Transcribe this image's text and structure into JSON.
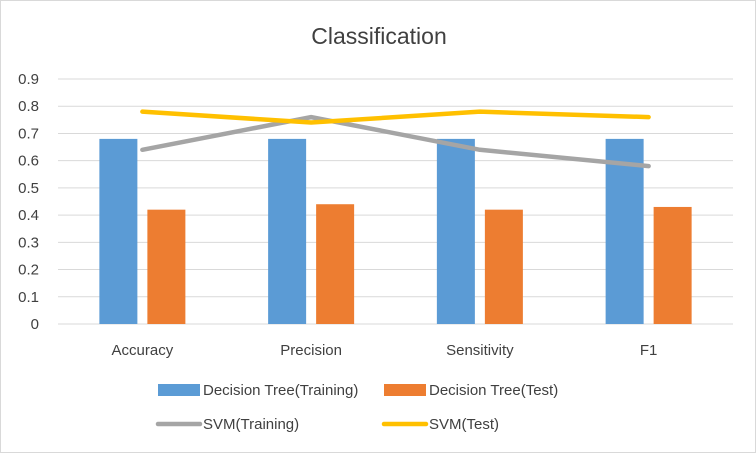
{
  "chart_data": {
    "type": "bar",
    "title": "Classification",
    "categories": [
      "Accuracy",
      "Precision",
      "Sensitivity",
      "F1"
    ],
    "yticks": [
      "0",
      "0.1",
      "0.2",
      "0.3",
      "0.4",
      "0.5",
      "0.6",
      "0.7",
      "0.8",
      "0.9"
    ],
    "ylim": [
      0,
      0.9
    ],
    "grid": true,
    "legend_position": "bottom",
    "series": [
      {
        "name": "Decision Tree(Training)",
        "kind": "bar",
        "color": "#5b9bd5",
        "values": [
          0.68,
          0.68,
          0.68,
          0.68
        ]
      },
      {
        "name": "Decision Tree(Test)",
        "kind": "bar",
        "color": "#ed7d31",
        "values": [
          0.42,
          0.44,
          0.42,
          0.43
        ]
      },
      {
        "name": "SVM(Training)",
        "kind": "line",
        "color": "#a5a5a5",
        "values": [
          0.64,
          0.76,
          0.64,
          0.58
        ]
      },
      {
        "name": "SVM(Test)",
        "kind": "line",
        "color": "#ffc000",
        "values": [
          0.78,
          0.74,
          0.78,
          0.76
        ]
      }
    ]
  }
}
